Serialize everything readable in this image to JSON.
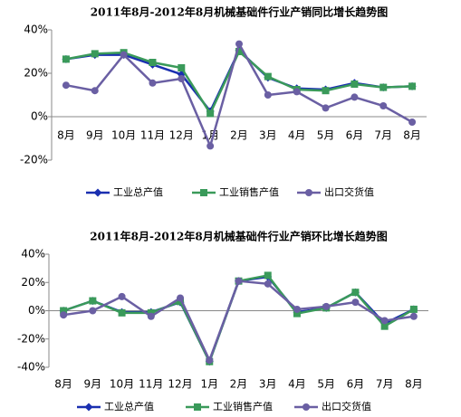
{
  "chart_data": [
    {
      "type": "line",
      "title": "2011年8月-2012年8月机械基础件行业产销同比增长趋势图",
      "categories": [
        "8月",
        "9月",
        "10月",
        "11月",
        "12月",
        "1月",
        "2月",
        "3月",
        "4月",
        "5月",
        "6月",
        "7月",
        "8月"
      ],
      "ylim": [
        -20,
        40
      ],
      "yticks": [
        {
          "value": -20,
          "label": "-20%"
        },
        {
          "value": 0,
          "label": "0%"
        },
        {
          "value": 20,
          "label": "20%"
        },
        {
          "value": 40,
          "label": "40%"
        }
      ],
      "legend": "bottom",
      "series": [
        {
          "name": "工业总产值",
          "color": "#1a2fb0",
          "values": [
            26.5,
            28.5,
            28.5,
            24,
            19.5,
            2.5,
            30.5,
            18,
            13,
            12.5,
            15.5,
            13.5,
            14
          ]
        },
        {
          "name": "工业销售产值",
          "color": "#3a9a5a",
          "values": [
            26.5,
            29,
            29.5,
            25,
            22.5,
            1.5,
            30,
            18.5,
            12.5,
            12,
            15,
            13.5,
            14
          ]
        },
        {
          "name": "出口交货值",
          "color": "#6a5fa3",
          "values": [
            14.5,
            12,
            28.5,
            15.5,
            17.5,
            -13.5,
            33.5,
            10,
            11.5,
            4,
            9,
            5,
            -2.5
          ]
        }
      ]
    },
    {
      "type": "line",
      "title": "2011年8月-2012年8月机械基础件行业产销环比增长趋势图",
      "categories": [
        "8月",
        "9月",
        "10月",
        "11月",
        "12月",
        "1月",
        "2月",
        "3月",
        "4月",
        "5月",
        "6月",
        "7月",
        "8月"
      ],
      "ylim": [
        -40,
        40
      ],
      "yticks": [
        {
          "value": -40,
          "label": "-40%"
        },
        {
          "value": -20,
          "label": "-20%"
        },
        {
          "value": 0,
          "label": "0%"
        },
        {
          "value": 20,
          "label": "20%"
        },
        {
          "value": 40,
          "label": "40%"
        }
      ],
      "legend": "bottom",
      "series": [
        {
          "name": "工业总产值",
          "color": "#1a2fb0",
          "values": [
            0,
            7,
            -1,
            -1,
            6,
            -36,
            21,
            24,
            -1,
            2,
            13,
            -9,
            1
          ]
        },
        {
          "name": "工业销售产值",
          "color": "#3a9a5a",
          "values": [
            0,
            7,
            -1.5,
            -1.5,
            6.5,
            -36,
            21,
            25,
            -2,
            2,
            13,
            -11,
            1
          ]
        },
        {
          "name": "出口交货值",
          "color": "#6a5fa3",
          "values": [
            -3,
            0,
            10,
            -4,
            9,
            -35,
            21,
            19,
            1,
            3,
            6,
            -7,
            -4
          ]
        }
      ]
    }
  ]
}
